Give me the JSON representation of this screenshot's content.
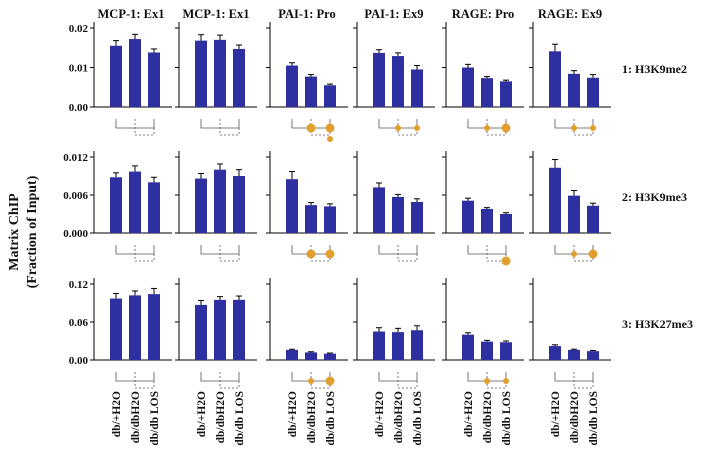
{
  "y_axis_label_line1": "Matrix ChIP",
  "y_axis_label_line2": "(Fraction of Input)",
  "columns": [
    "MCP-1: Ex1",
    "MCP-1: Ex1",
    "PAI-1: Pro",
    "PAI-1: Ex9",
    "RAGE: Pro",
    "RAGE: Ex9"
  ],
  "rows": [
    "1: H3K9me2",
    "2: H3K9me3",
    "3: H3K27me3"
  ],
  "categories": [
    "db/+H2O",
    "db/dbH2O",
    "db/db LOS"
  ],
  "colors": {
    "bar": "#2e2fa0",
    "marker": "#e0a030",
    "bracket": "#555555"
  },
  "chart_data": [
    {
      "type": "bar",
      "row": 0,
      "title": "MCP-1: Ex1",
      "ylabel": "H3K9me2",
      "ylim": [
        0,
        0.02
      ],
      "ticks": [
        "0.00",
        "0.01",
        "0.02"
      ],
      "categories": [
        "db/+H2O",
        "db/dbH2O",
        "db/db LOS"
      ],
      "values": [
        0.0155,
        0.0172,
        0.0138
      ],
      "errors": [
        0.0013,
        0.0012,
        0.0009
      ],
      "markers": []
    },
    {
      "type": "bar",
      "row": 0,
      "title": "MCP-1: Ex1",
      "ylabel": "H3K9me2",
      "ylim": [
        0,
        0.02
      ],
      "categories": [
        "db/+H2O",
        "db/dbH2O",
        "db/db LOS"
      ],
      "values": [
        0.0168,
        0.017,
        0.0147
      ],
      "errors": [
        0.0015,
        0.0012,
        0.001
      ],
      "markers": []
    },
    {
      "type": "bar",
      "row": 0,
      "title": "PAI-1: Pro",
      "ylabel": "H3K9me2",
      "ylim": [
        0,
        0.02
      ],
      "categories": [
        "db/+H2O",
        "db/dbH2O",
        "db/db LOS"
      ],
      "values": [
        0.0105,
        0.0077,
        0.0055
      ],
      "errors": [
        0.0007,
        0.0005,
        0.0003
      ],
      "markers": [
        {
          "kind": "pair",
          "size": "large"
        },
        {
          "kind": "single",
          "size": "small"
        }
      ]
    },
    {
      "type": "bar",
      "row": 0,
      "title": "PAI-1: Ex9",
      "ylabel": "H3K9me2",
      "ylim": [
        0,
        0.02
      ],
      "categories": [
        "db/+H2O",
        "db/dbH2O",
        "db/db LOS"
      ],
      "values": [
        0.0137,
        0.0129,
        0.0095
      ],
      "errors": [
        0.0008,
        0.0008,
        0.001
      ],
      "markers": [
        {
          "kind": "pair",
          "size": "small"
        }
      ]
    },
    {
      "type": "bar",
      "row": 0,
      "title": "RAGE: Pro",
      "ylabel": "H3K9me2",
      "ylim": [
        0,
        0.02
      ],
      "categories": [
        "db/+H2O",
        "db/dbH2O",
        "db/db LOS"
      ],
      "values": [
        0.01,
        0.0073,
        0.0065
      ],
      "errors": [
        0.0008,
        0.0004,
        0.0003
      ],
      "markers": [
        {
          "kind": "pair",
          "size": "small-large"
        }
      ]
    },
    {
      "type": "bar",
      "row": 0,
      "title": "RAGE: Ex9",
      "ylabel": "H3K9me2",
      "ylim": [
        0,
        0.02
      ],
      "categories": [
        "db/+H2O",
        "db/dbH2O",
        "db/db LOS"
      ],
      "values": [
        0.0141,
        0.0084,
        0.0074
      ],
      "errors": [
        0.0018,
        0.0008,
        0.0008
      ],
      "markers": [
        {
          "kind": "pair",
          "size": "small"
        }
      ]
    },
    {
      "type": "bar",
      "row": 1,
      "title": "MCP-1: Ex1",
      "ylabel": "H3K9me3",
      "ylim": [
        0,
        0.012
      ],
      "ticks": [
        "0.000",
        "0.006",
        "0.012"
      ],
      "categories": [
        "db/+H2O",
        "db/dbH2O",
        "db/db LOS"
      ],
      "values": [
        0.0088,
        0.0097,
        0.008
      ],
      "errors": [
        0.0007,
        0.0009,
        0.0008
      ],
      "markers": []
    },
    {
      "type": "bar",
      "row": 1,
      "title": "MCP-1: Ex1",
      "ylabel": "H3K9me3",
      "ylim": [
        0,
        0.012
      ],
      "categories": [
        "db/+H2O",
        "db/dbH2O",
        "db/db LOS"
      ],
      "values": [
        0.0086,
        0.01,
        0.009
      ],
      "errors": [
        0.0008,
        0.0009,
        0.001
      ],
      "markers": []
    },
    {
      "type": "bar",
      "row": 1,
      "title": "PAI-1: Pro",
      "ylabel": "H3K9me3",
      "ylim": [
        0,
        0.012
      ],
      "categories": [
        "db/+H2O",
        "db/dbH2O",
        "db/db LOS"
      ],
      "values": [
        0.0085,
        0.0044,
        0.0042
      ],
      "errors": [
        0.0012,
        0.0004,
        0.0004
      ],
      "markers": [
        {
          "kind": "pair",
          "size": "large"
        }
      ]
    },
    {
      "type": "bar",
      "row": 1,
      "title": "PAI-1: Ex9",
      "ylabel": "H3K9me3",
      "ylim": [
        0,
        0.012
      ],
      "categories": [
        "db/+H2O",
        "db/dbH2O",
        "db/db LOS"
      ],
      "values": [
        0.0072,
        0.0057,
        0.0049
      ],
      "errors": [
        0.0007,
        0.0004,
        0.0005
      ],
      "markers": []
    },
    {
      "type": "bar",
      "row": 1,
      "title": "RAGE: Pro",
      "ylabel": "H3K9me3",
      "ylim": [
        0,
        0.012
      ],
      "categories": [
        "db/+H2O",
        "db/dbH2O",
        "db/db LOS"
      ],
      "values": [
        0.0051,
        0.0038,
        0.003
      ],
      "errors": [
        0.0004,
        0.0002,
        0.0002
      ],
      "markers": [
        {
          "kind": "single",
          "size": "large"
        }
      ]
    },
    {
      "type": "bar",
      "row": 1,
      "title": "RAGE: Ex9",
      "ylabel": "H3K9me3",
      "ylim": [
        0,
        0.012
      ],
      "categories": [
        "db/+H2O",
        "db/dbH2O",
        "db/db LOS"
      ],
      "values": [
        0.0103,
        0.0059,
        0.0043
      ],
      "errors": [
        0.0013,
        0.0008,
        0.0004
      ],
      "markers": [
        {
          "kind": "pair",
          "size": "small-large"
        }
      ]
    },
    {
      "type": "bar",
      "row": 2,
      "title": "MCP-1: Ex1",
      "ylabel": "H3K27me3",
      "ylim": [
        0,
        0.12
      ],
      "ticks": [
        "0.00",
        "0.06",
        "0.12"
      ],
      "categories": [
        "db/+H2O",
        "db/dbH2O",
        "db/db LOS"
      ],
      "values": [
        0.097,
        0.102,
        0.104
      ],
      "errors": [
        0.008,
        0.007,
        0.009
      ],
      "markers": []
    },
    {
      "type": "bar",
      "row": 2,
      "title": "MCP-1: Ex1",
      "ylabel": "H3K27me3",
      "ylim": [
        0,
        0.12
      ],
      "categories": [
        "db/+H2O",
        "db/dbH2O",
        "db/db LOS"
      ],
      "values": [
        0.087,
        0.095,
        0.095
      ],
      "errors": [
        0.007,
        0.005,
        0.006
      ],
      "markers": []
    },
    {
      "type": "bar",
      "row": 2,
      "title": "PAI-1: Pro",
      "ylabel": "H3K27me3",
      "ylim": [
        0,
        0.12
      ],
      "categories": [
        "db/+H2O",
        "db/dbH2O",
        "db/db LOS"
      ],
      "values": [
        0.016,
        0.012,
        0.01
      ],
      "errors": [
        0.001,
        0.001,
        0.001
      ],
      "markers": [
        {
          "kind": "pair",
          "size": "small-large"
        }
      ]
    },
    {
      "type": "bar",
      "row": 2,
      "title": "PAI-1: Ex9",
      "ylabel": "H3K27me3",
      "ylim": [
        0,
        0.12
      ],
      "categories": [
        "db/+H2O",
        "db/dbH2O",
        "db/db LOS"
      ],
      "values": [
        0.045,
        0.044,
        0.047
      ],
      "errors": [
        0.006,
        0.006,
        0.007
      ],
      "markers": []
    },
    {
      "type": "bar",
      "row": 2,
      "title": "RAGE: Pro",
      "ylabel": "H3K27me3",
      "ylim": [
        0,
        0.12
      ],
      "categories": [
        "db/+H2O",
        "db/dbH2O",
        "db/db LOS"
      ],
      "values": [
        0.04,
        0.029,
        0.028
      ],
      "errors": [
        0.003,
        0.002,
        0.002
      ],
      "markers": [
        {
          "kind": "pair",
          "size": "small"
        }
      ]
    },
    {
      "type": "bar",
      "row": 2,
      "title": "RAGE: Ex9",
      "ylabel": "H3K27me3",
      "ylim": [
        0,
        0.12
      ],
      "categories": [
        "db/+H2O",
        "db/dbH2O",
        "db/db LOS"
      ],
      "values": [
        0.022,
        0.016,
        0.014
      ],
      "errors": [
        0.002,
        0.001,
        0.001
      ],
      "markers": []
    }
  ]
}
